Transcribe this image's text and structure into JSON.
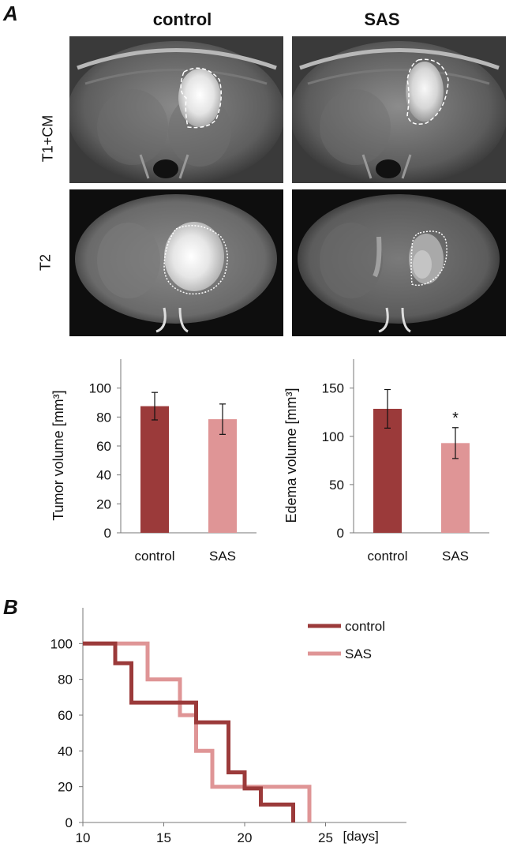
{
  "panel_a": {
    "letter": "A",
    "columns": [
      "control",
      "SAS"
    ],
    "rows": [
      "T1+CM",
      "T2"
    ]
  },
  "panel_b": {
    "letter": "B"
  },
  "colors": {
    "control": "#9b3a3a",
    "sas": "#df9596"
  },
  "chart_data": [
    {
      "id": "tumor-volume",
      "type": "bar",
      "categories": [
        "control",
        "SAS"
      ],
      "values": [
        87.5,
        78.5
      ],
      "errors": [
        9.5,
        10.5
      ],
      "ylabel": "Tumor volume [mm³]",
      "ylim": [
        0,
        120
      ],
      "yticks": [
        0,
        20,
        40,
        60,
        80,
        100
      ],
      "annotations": []
    },
    {
      "id": "edema-volume",
      "type": "bar",
      "categories": [
        "control",
        "SAS"
      ],
      "values": [
        128.5,
        93
      ],
      "errors": [
        20,
        16
      ],
      "ylabel": "Edema volume [mm³]",
      "ylim": [
        0,
        180
      ],
      "yticks": [
        0,
        50,
        100,
        150
      ],
      "annotations": [
        "*"
      ]
    },
    {
      "id": "survival",
      "type": "line",
      "step": true,
      "xlim": [
        10,
        30
      ],
      "ylim": [
        0,
        120
      ],
      "xticks": [
        10,
        15,
        20,
        25
      ],
      "yticks": [
        0,
        20,
        40,
        60,
        80,
        100
      ],
      "xunit": "[days]",
      "legend_position": "top-right",
      "series": [
        {
          "name": "control",
          "points": [
            [
              10,
              100
            ],
            [
              12,
              100
            ],
            [
              12,
              89
            ],
            [
              13,
              89
            ],
            [
              13,
              67
            ],
            [
              17,
              67
            ],
            [
              17,
              56
            ],
            [
              19,
              56
            ],
            [
              19,
              28
            ],
            [
              20,
              28
            ],
            [
              20,
              19
            ],
            [
              21,
              19
            ],
            [
              21,
              10
            ],
            [
              23,
              10
            ],
            [
              23,
              0
            ]
          ]
        },
        {
          "name": "SAS",
          "points": [
            [
              10,
              100
            ],
            [
              14,
              100
            ],
            [
              14,
              80
            ],
            [
              16,
              80
            ],
            [
              16,
              60
            ],
            [
              17,
              60
            ],
            [
              17,
              40
            ],
            [
              18,
              40
            ],
            [
              18,
              20
            ],
            [
              24,
              20
            ],
            [
              24,
              0
            ]
          ]
        }
      ]
    }
  ]
}
